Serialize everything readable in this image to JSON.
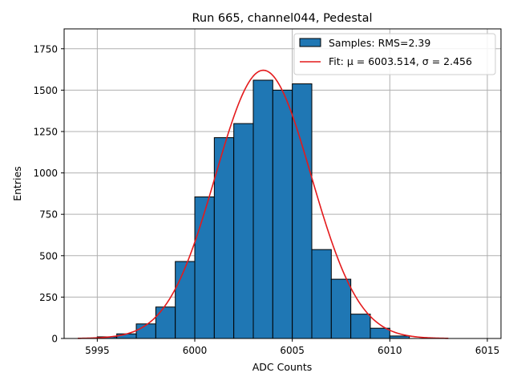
{
  "chart_data": {
    "type": "bar",
    "title": "Run 665, channel044, Pedestal",
    "xlabel": "ADC Counts",
    "ylabel": "Entries",
    "xlim": [
      5993.3,
      6015.7
    ],
    "ylim": [
      0,
      1870
    ],
    "x_ticks": [
      5995,
      6000,
      6005,
      6010,
      6015
    ],
    "y_ticks": [
      0,
      250,
      500,
      750,
      1000,
      1250,
      1500,
      1750
    ],
    "grid": true,
    "legend_position": "top-right",
    "colors": {
      "bar": "#1f77b4",
      "bar_edge": "#000000",
      "fit": "#e41a1c"
    },
    "series": [
      {
        "name": "Samples: RMS=2.39",
        "type": "histogram",
        "bin_width": 1,
        "bin_left": [
          5995,
          5996,
          5997,
          5998,
          5999,
          6000,
          6001,
          6002,
          6003,
          6004,
          6005,
          6006,
          6007,
          6008,
          6009,
          6010
        ],
        "values": [
          10,
          28,
          88,
          190,
          465,
          855,
          1213,
          1298,
          1560,
          1500,
          1538,
          537,
          358,
          147,
          62,
          15
        ]
      },
      {
        "name": "Fit: μ = 6003.514, σ = 2.456",
        "type": "line",
        "model": "gaussian",
        "mu": 6003.514,
        "sigma": 2.456,
        "amplitude": 1620,
        "x_range": [
          5994,
          6013
        ]
      }
    ]
  }
}
